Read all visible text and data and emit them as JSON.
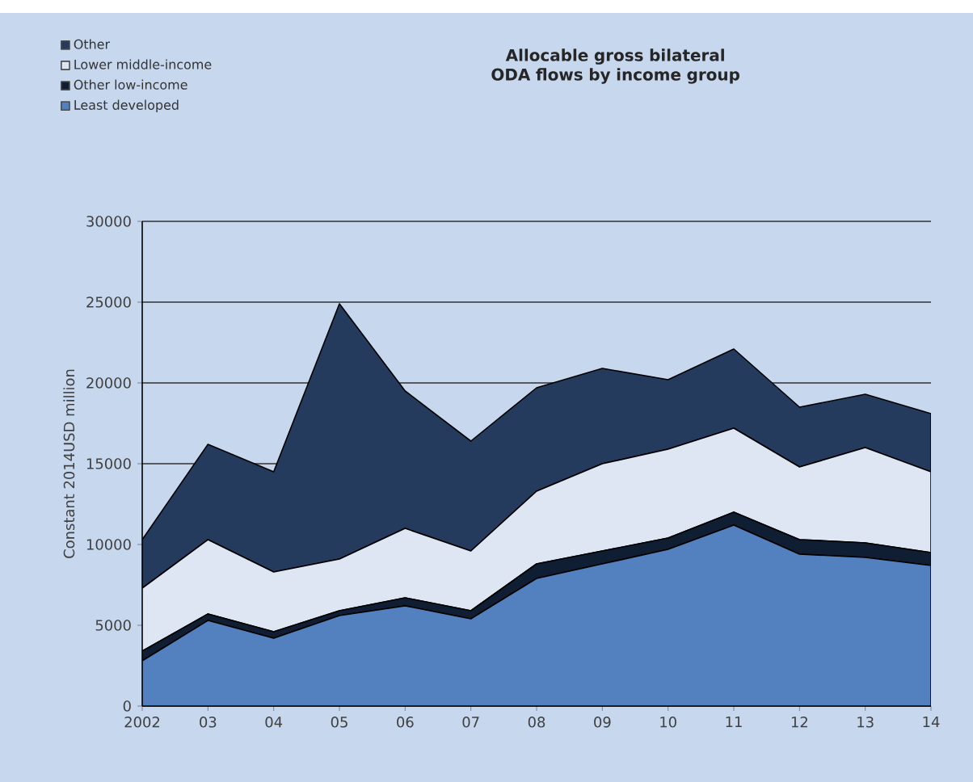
{
  "chart_data": {
    "type": "area",
    "title": "Allocable gross bilateral ODA flows by income group",
    "ylabel": "Constant 2014USD million",
    "categories": [
      "2002",
      "03",
      "04",
      "05",
      "06",
      "07",
      "08",
      "09",
      "10",
      "11",
      "12",
      "13",
      "14"
    ],
    "stacked": true,
    "ylim": [
      0,
      30000
    ],
    "yticks": [
      0,
      5000,
      10000,
      15000,
      20000,
      25000,
      30000
    ],
    "grid": "y",
    "legend": "top left",
    "series": [
      {
        "name": "Least developed",
        "color": "#5381c0",
        "values": [
          2800,
          5300,
          4200,
          5600,
          6200,
          5400,
          7900,
          8800,
          9700,
          11200,
          9400,
          9200,
          8700
        ]
      },
      {
        "name": "Other low-income",
        "color": "#0f1e33",
        "values": [
          600,
          400,
          400,
          300,
          500,
          500,
          900,
          800,
          700,
          800,
          900,
          900,
          800
        ]
      },
      {
        "name": "Lower middle-income",
        "color": "#dde6f2",
        "values": [
          3900,
          4600,
          3700,
          3200,
          4300,
          3700,
          4500,
          5400,
          5500,
          5200,
          4500,
          5900,
          5000
        ]
      },
      {
        "name": "Other",
        "color": "#243b5e",
        "values": [
          3000,
          5900,
          6200,
          15800,
          8500,
          6800,
          6400,
          5900,
          4300,
          4900,
          3700,
          3300,
          3600
        ]
      }
    ]
  }
}
